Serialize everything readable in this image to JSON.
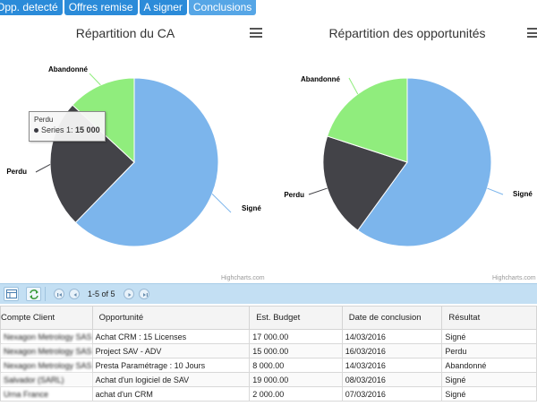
{
  "tabs": [
    {
      "label": "Opp. detecté"
    },
    {
      "label": "Offres remise"
    },
    {
      "label": "A signer"
    },
    {
      "label": "Conclusions"
    }
  ],
  "charts": {
    "left": {
      "title": "Répartition du CA",
      "credits": "Highcharts.com"
    },
    "right": {
      "title": "Répartition des opportunités",
      "credits": "Highcharts.com"
    }
  },
  "tooltip": {
    "category": "Perdu",
    "series": "Series 1",
    "value": "15 000"
  },
  "chart_data": [
    {
      "type": "pie",
      "title": "Répartition du CA",
      "categories": [
        "Signé",
        "Perdu",
        "Abandonné"
      ],
      "values": [
        38000,
        15000,
        8000
      ],
      "colors": [
        "#7cb5ec",
        "#434348",
        "#90ed7d"
      ]
    },
    {
      "type": "pie",
      "title": "Répartition des opportunités",
      "categories": [
        "Signé",
        "Perdu",
        "Abandonné"
      ],
      "values": [
        3,
        1,
        1
      ],
      "colors": [
        "#7cb5ec",
        "#434348",
        "#90ed7d"
      ]
    }
  ],
  "pager": {
    "text": "1-5 of 5"
  },
  "grid": {
    "columns": [
      "Compte Client",
      "Opportunité",
      "Est. Budget",
      "Date de conclusion",
      "Résultat"
    ],
    "rows": [
      [
        "Nexagon Metrology SAS",
        "Achat CRM : 15 Licenses",
        "17 000.00",
        "14/03/2016",
        "Signé"
      ],
      [
        "Nexagon Metrology SAS",
        "Project SAV - ADV",
        "15 000.00",
        "16/03/2016",
        "Perdu"
      ],
      [
        "Nexagon Metrology SAS",
        "Presta Paramétrage : 10 Jours",
        "8 000.00",
        "14/03/2016",
        "Abandonné"
      ],
      [
        "Salvador (SARL)",
        "Achat d'un logiciel de SAV",
        "19 000.00",
        "08/03/2016",
        "Signé"
      ],
      [
        "Urna France",
        "achat d'un CRM",
        "2 000.00",
        "07/03/2016",
        "Signé"
      ]
    ]
  }
}
